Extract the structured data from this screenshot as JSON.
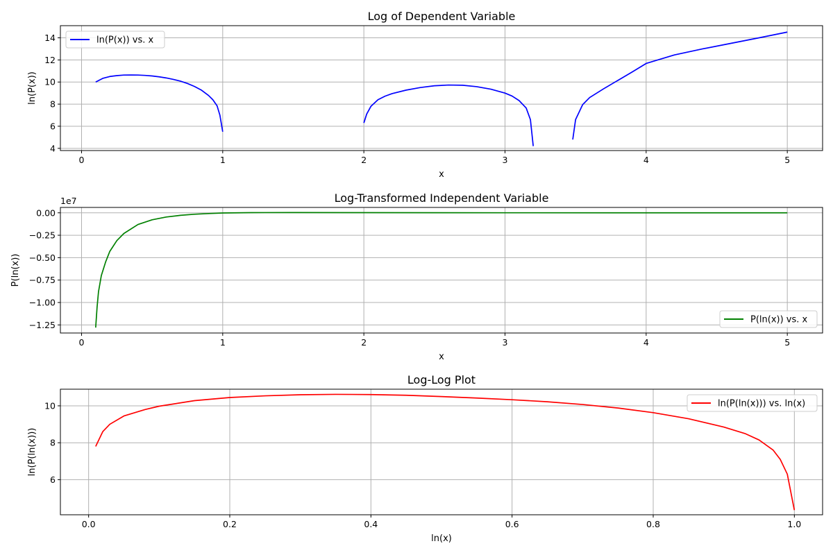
{
  "chart_data": [
    {
      "type": "line",
      "title": "Log of Dependent Variable",
      "xlabel": "x",
      "ylabel": "ln(P(x))",
      "xlim": [
        -0.15,
        5.25
      ],
      "ylim": [
        3.8,
        15.1
      ],
      "xticks": [
        0,
        1,
        2,
        3,
        4,
        5
      ],
      "xtick_labels": [
        "0",
        "1",
        "2",
        "3",
        "4",
        "5"
      ],
      "yticks": [
        4,
        6,
        8,
        10,
        12,
        14
      ],
      "ytick_labels": [
        "4",
        "6",
        "8",
        "10",
        "12",
        "14"
      ],
      "grid": true,
      "legend_position": "upper-left",
      "series": [
        {
          "name": "ln(P(x)) vs. x",
          "color": "#0000ff",
          "segments": [
            [
              [
                0.1,
                10.0
              ],
              [
                0.15,
                10.33
              ],
              [
                0.2,
                10.5
              ],
              [
                0.25,
                10.58
              ],
              [
                0.3,
                10.63
              ],
              [
                0.35,
                10.64
              ],
              [
                0.4,
                10.63
              ],
              [
                0.45,
                10.6
              ],
              [
                0.5,
                10.55
              ],
              [
                0.55,
                10.47
              ],
              [
                0.6,
                10.37
              ],
              [
                0.65,
                10.24
              ],
              [
                0.7,
                10.08
              ],
              [
                0.75,
                9.87
              ],
              [
                0.8,
                9.6
              ],
              [
                0.85,
                9.26
              ],
              [
                0.9,
                8.78
              ],
              [
                0.93,
                8.4
              ],
              [
                0.96,
                7.85
              ],
              [
                0.98,
                7.0
              ],
              [
                1.0,
                5.5
              ]
            ],
            [
              [
                2.0,
                6.3
              ],
              [
                2.02,
                7.1
              ],
              [
                2.05,
                7.8
              ],
              [
                2.1,
                8.4
              ],
              [
                2.15,
                8.72
              ],
              [
                2.2,
                8.95
              ],
              [
                2.3,
                9.27
              ],
              [
                2.4,
                9.5
              ],
              [
                2.5,
                9.66
              ],
              [
                2.6,
                9.73
              ],
              [
                2.7,
                9.71
              ],
              [
                2.8,
                9.58
              ],
              [
                2.9,
                9.35
              ],
              [
                3.0,
                9.0
              ],
              [
                3.05,
                8.73
              ],
              [
                3.1,
                8.32
              ],
              [
                3.15,
                7.65
              ],
              [
                3.18,
                6.6
              ],
              [
                3.2,
                4.2
              ]
            ],
            [
              [
                3.48,
                4.8
              ],
              [
                3.5,
                6.6
              ],
              [
                3.55,
                7.95
              ],
              [
                3.6,
                8.6
              ],
              [
                3.7,
                9.4
              ],
              [
                3.8,
                10.15
              ],
              [
                3.9,
                10.9
              ],
              [
                4.0,
                11.68
              ],
              [
                4.2,
                12.45
              ],
              [
                4.4,
                13.0
              ],
              [
                4.6,
                13.5
              ],
              [
                4.8,
                14.0
              ],
              [
                5.0,
                14.52
              ]
            ]
          ]
        }
      ]
    },
    {
      "type": "line",
      "title": "Log-Transformed Independent Variable",
      "xlabel": "x",
      "ylabel": "P(ln(x))",
      "offset_text": "1e7",
      "xlim": [
        -0.15,
        5.25
      ],
      "ylim": [
        -13400000,
        600000
      ],
      "xticks": [
        0,
        1,
        2,
        3,
        4,
        5
      ],
      "xtick_labels": [
        "0",
        "1",
        "2",
        "3",
        "4",
        "5"
      ],
      "yticks": [
        0,
        -2500000,
        -5000000,
        -7500000,
        -10000000,
        -12500000
      ],
      "ytick_labels": [
        "0.00",
        "−0.25",
        "−0.50",
        "−0.75",
        "−1.00",
        "−1.25"
      ],
      "grid": true,
      "legend_position": "lower-right",
      "series": [
        {
          "name": "P(ln(x)) vs. x",
          "color": "#008000",
          "segments": [
            [
              [
                0.1,
                -12800000
              ],
              [
                0.11,
                -10500000
              ],
              [
                0.12,
                -8800000
              ],
              [
                0.14,
                -7000000
              ],
              [
                0.17,
                -5500000
              ],
              [
                0.2,
                -4300000
              ],
              [
                0.25,
                -3100000
              ],
              [
                0.3,
                -2300000
              ],
              [
                0.4,
                -1300000
              ],
              [
                0.5,
                -780000
              ],
              [
                0.6,
                -470000
              ],
              [
                0.7,
                -280000
              ],
              [
                0.8,
                -160000
              ],
              [
                0.9,
                -80000
              ],
              [
                1.0,
                -20000
              ],
              [
                1.2,
                20000
              ],
              [
                1.5,
                30000
              ],
              [
                2.0,
                20000
              ],
              [
                3.0,
                5000
              ],
              [
                4.0,
                0
              ],
              [
                5.0,
                0
              ]
            ]
          ]
        }
      ]
    },
    {
      "type": "line",
      "title": "Log-Log Plot",
      "xlabel": "ln(x)",
      "ylabel": "ln(P(ln(x)))",
      "xlim": [
        -0.04,
        1.04
      ],
      "ylim": [
        4.1,
        10.9
      ],
      "xticks": [
        0.0,
        0.2,
        0.4,
        0.6,
        0.8,
        1.0
      ],
      "xtick_labels": [
        "0.0",
        "0.2",
        "0.4",
        "0.6",
        "0.8",
        "1.0"
      ],
      "yticks": [
        6,
        8,
        10
      ],
      "ytick_labels": [
        "6",
        "8",
        "10"
      ],
      "grid": true,
      "legend_position": "upper-right",
      "series": [
        {
          "name": "ln(P(ln(x))) vs. ln(x)",
          "color": "#ff0000",
          "segments": [
            [
              [
                0.01,
                7.8
              ],
              [
                0.02,
                8.6
              ],
              [
                0.03,
                9.0
              ],
              [
                0.05,
                9.45
              ],
              [
                0.08,
                9.8
              ],
              [
                0.1,
                9.98
              ],
              [
                0.15,
                10.28
              ],
              [
                0.2,
                10.45
              ],
              [
                0.25,
                10.54
              ],
              [
                0.3,
                10.6
              ],
              [
                0.35,
                10.62
              ],
              [
                0.4,
                10.61
              ],
              [
                0.45,
                10.57
              ],
              [
                0.5,
                10.5
              ],
              [
                0.55,
                10.42
              ],
              [
                0.6,
                10.33
              ],
              [
                0.65,
                10.22
              ],
              [
                0.7,
                10.07
              ],
              [
                0.75,
                9.88
              ],
              [
                0.8,
                9.63
              ],
              [
                0.85,
                9.3
              ],
              [
                0.9,
                8.85
              ],
              [
                0.93,
                8.5
              ],
              [
                0.95,
                8.15
              ],
              [
                0.97,
                7.6
              ],
              [
                0.98,
                7.1
              ],
              [
                0.99,
                6.3
              ],
              [
                1.0,
                4.35
              ]
            ]
          ]
        }
      ]
    }
  ]
}
